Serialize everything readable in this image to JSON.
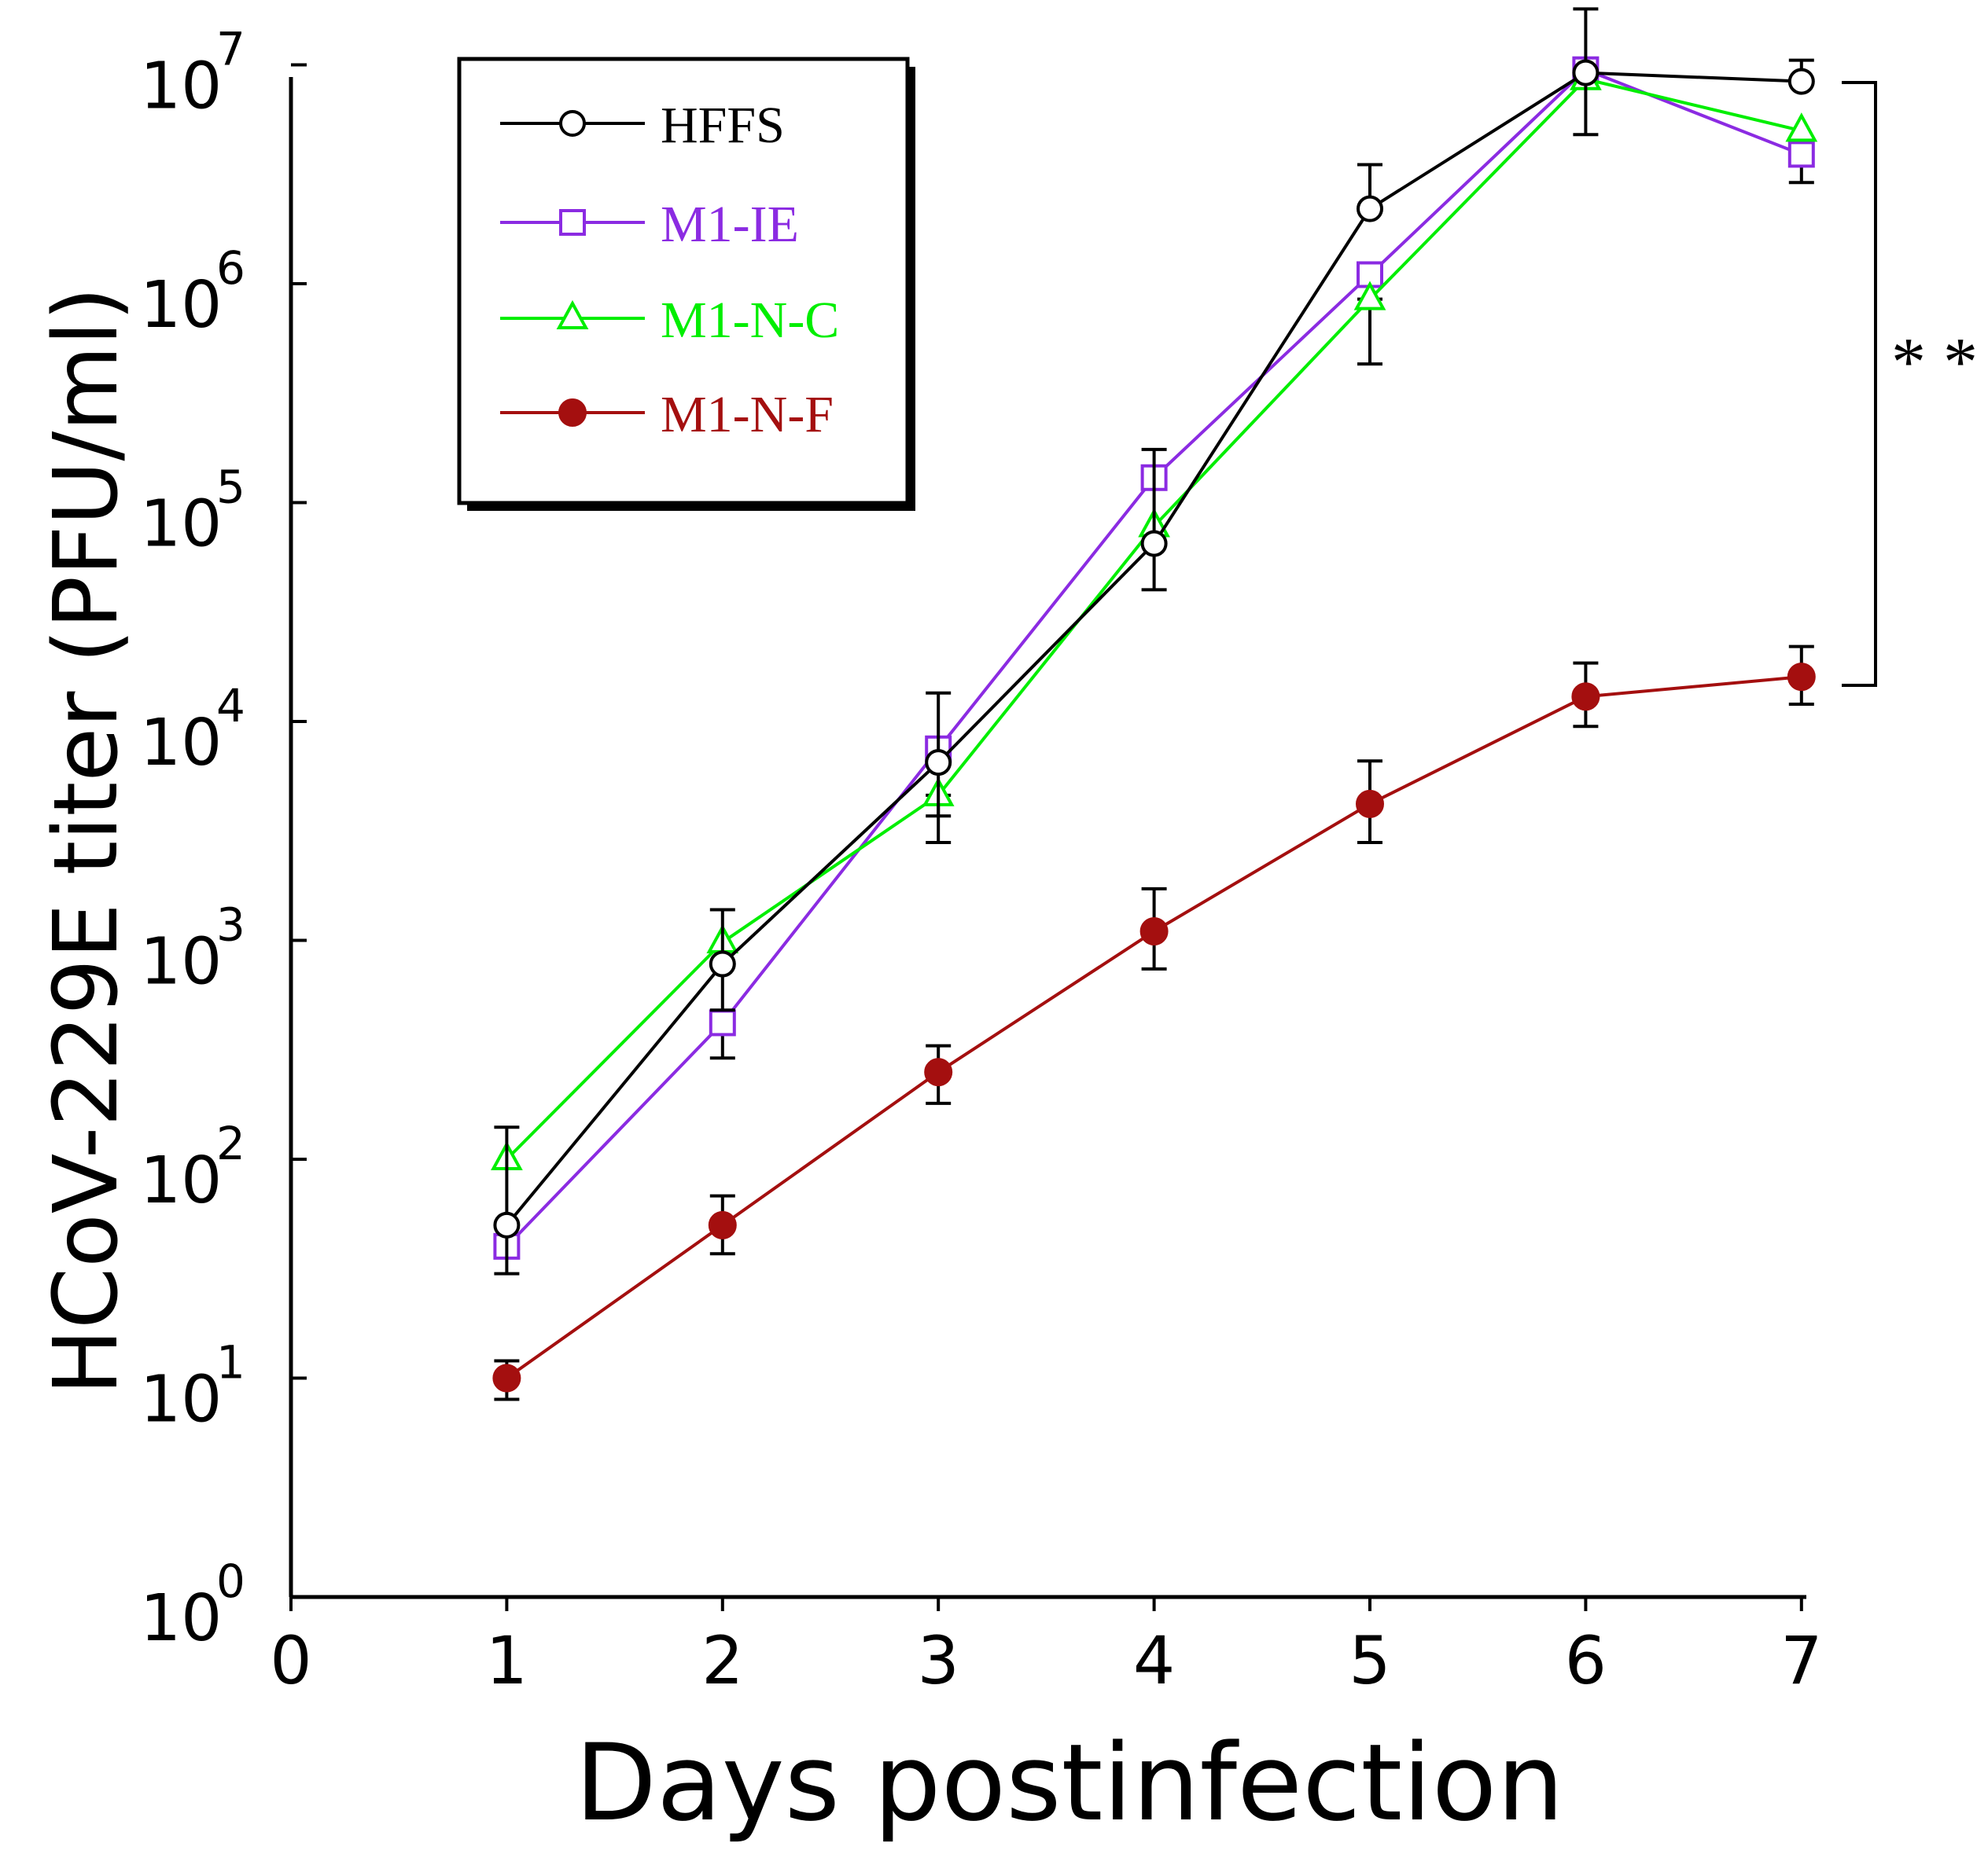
{
  "chart_data": {
    "type": "line",
    "title": "",
    "xlabel": "Days postinfection",
    "ylabel": "HCoV-229E titer (PFU/ml)",
    "xlim": [
      0,
      7
    ],
    "ylim_log10": [
      0,
      7
    ],
    "yscale": "log",
    "x_ticks": [
      "0",
      "1",
      "2",
      "3",
      "4",
      "5",
      "6",
      "7"
    ],
    "y_ticks": [
      {
        "base": "10",
        "exp": "0"
      },
      {
        "base": "10",
        "exp": "1"
      },
      {
        "base": "10",
        "exp": "2"
      },
      {
        "base": "10",
        "exp": "3"
      },
      {
        "base": "10",
        "exp": "4"
      },
      {
        "base": "10",
        "exp": "5"
      },
      {
        "base": "10",
        "exp": "6"
      },
      {
        "base": "10",
        "exp": "7"
      }
    ],
    "legend_position": "top-left",
    "x": [
      1,
      2,
      3,
      4,
      5,
      6,
      7
    ],
    "series": [
      {
        "name": "HFFS",
        "color": "#000000",
        "marker": "circle-open",
        "values": [
          50,
          780,
          6500,
          65000,
          2200000,
          9200000,
          8400000
        ],
        "err_low": [
          30,
          480,
          3700,
          40000,
          2200000,
          4800000,
          8400000
        ],
        "err_high": [
          140,
          1380,
          13500,
          175000,
          3500000,
          18000000,
          10500000
        ]
      },
      {
        "name": "M1-IE",
        "color": "#8B2BE2",
        "marker": "square-open",
        "values": [
          40,
          420,
          7500,
          130000,
          1100000,
          9500000,
          3900000
        ],
        "err_low": [
          40,
          290,
          7500,
          130000,
          1100000,
          9500000,
          2900000
        ],
        "err_high": [
          40,
          420,
          7500,
          130000,
          1100000,
          9500000,
          3900000
        ]
      },
      {
        "name": "M1-N-C",
        "color": "#00EE00",
        "marker": "triangle-open",
        "values": [
          100,
          980,
          4600,
          78000,
          850000,
          8600000,
          5000000
        ],
        "err_low": [
          100,
          980,
          2800,
          78000,
          430000,
          8600000,
          5000000
        ],
        "err_high": [
          100,
          980,
          4600,
          78000,
          850000,
          8600000,
          5000000
        ]
      },
      {
        "name": "M1-N-F",
        "color": "#A40F0F",
        "marker": "circle-filled",
        "values": [
          10,
          50,
          250,
          1100,
          4200,
          13000,
          16000
        ],
        "err_low": [
          8,
          37,
          180,
          740,
          2800,
          9500,
          12000
        ],
        "err_high": [
          12,
          68,
          330,
          1720,
          6600,
          18500,
          22000
        ]
      }
    ],
    "annotations": [
      {
        "text": "* *",
        "type": "significance-bracket",
        "between": [
          "HFFS",
          "M1-N-F"
        ],
        "at_x": 7
      }
    ]
  }
}
